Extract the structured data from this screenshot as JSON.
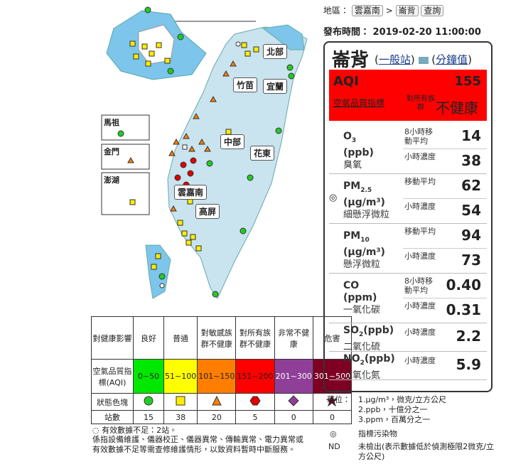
{
  "header": {
    "region_label": "地區：",
    "region": "雲嘉南",
    "sep": ">",
    "station_select": "崙背",
    "query": "查詢",
    "time_label": "發布時間：",
    "time": "2019-02-20 11:00:00"
  },
  "map": {
    "regions": [
      "北部",
      "竹苗",
      "宜蘭",
      "中部",
      "花東",
      "雲嘉南",
      "高屏"
    ],
    "insets": [
      "馬祖",
      "金門",
      "澎湖"
    ]
  },
  "legend_table": {
    "header": [
      "對健康影響",
      "良好",
      "普通",
      "對敏感族群不健康",
      "對所有族群不健康",
      "非常不健康",
      "危害"
    ],
    "aqi_label": "空氣品質指標(AQI)",
    "aqi_ranges": [
      "0~50",
      "51~100",
      "101~150",
      "151~200",
      "201~300",
      "301~500"
    ],
    "status_label": "狀態色塊",
    "count_label": "站數",
    "counts": [
      15,
      38,
      20,
      5,
      0,
      0
    ]
  },
  "notes": {
    "symbol": "◌",
    "insufficient": "有效數據不足：2站。",
    "description": "係指設備維護、儀器校正、儀器異常、傳輸異常、電力異常或有效數據不足等需查修維護情形，以致資料暫時中斷服務。"
  },
  "station": {
    "name": "崙背",
    "type": "一般站",
    "minute": "分鐘值",
    "aqi_label": "AQI",
    "aqi": "155",
    "aqi_caption": "空氣品質指標",
    "status_prefix": "對所有族群",
    "status": "不健康",
    "pollutants": [
      {
        "name": "O",
        "sub": "3",
        "unit": "(ppb)",
        "cname": "臭氧",
        "rows": [
          {
            "label": "8小時移動平均",
            "value": "14"
          },
          {
            "label": "小時濃度",
            "value": "38"
          }
        ]
      },
      {
        "indicator": "◎",
        "name": "PM",
        "sub": "2.5",
        "unit": "(μg/m³)",
        "cname": "細懸浮微粒",
        "rows": [
          {
            "label": "移動平均",
            "value": "62"
          },
          {
            "label": "小時濃度",
            "value": "54"
          }
        ]
      },
      {
        "name": "PM",
        "sub": "10",
        "unit": "(μg/m³)",
        "cname": "懸浮微粒",
        "rows": [
          {
            "label": "移動平均",
            "value": "94"
          },
          {
            "label": "小時濃度",
            "value": "73"
          }
        ]
      },
      {
        "name": "CO",
        "unit": "(ppm)",
        "cname": "一氧化碳",
        "rows": [
          {
            "label": "8小時移動平均",
            "value": "0.40"
          },
          {
            "label": "小時濃度",
            "value": "0.31"
          }
        ]
      },
      {
        "name": "SO",
        "sub": "2",
        "unit": "(ppb)",
        "cname": "二氧化硫",
        "rows": [
          {
            "label": "小時濃度",
            "value": "2.2"
          }
        ]
      },
      {
        "name": "NO",
        "sub": "2",
        "unit": "(ppb)",
        "cname": "二氧化氮",
        "rows": [
          {
            "label": "小時濃度",
            "value": "5.9"
          }
        ]
      }
    ]
  },
  "units": {
    "label": "單位：",
    "lines": [
      "1.μg/m³，微克/立方公尺",
      "2.ppb，十億分之一",
      "3.ppm，百萬分之一"
    ],
    "indicator_symbol": "◎",
    "indicator_text": "指標污染物",
    "nd_symbol": "ND",
    "nd_text": "未檢出(表示數據低於偵測極限2微克/立方公尺)"
  }
}
